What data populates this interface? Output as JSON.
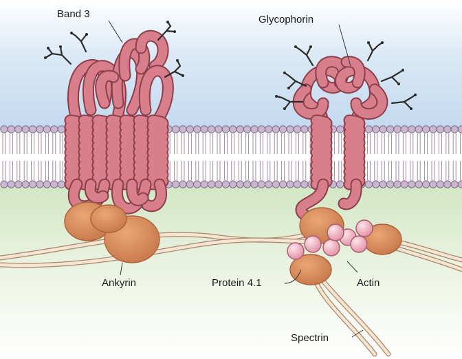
{
  "labels": {
    "band3": "Band 3",
    "glycophorin": "Glycophorin",
    "ankyrin": "Ankyrin",
    "protein41": "Protein 4.1",
    "actin": "Actin",
    "spectrin": "Spectrin"
  },
  "colors": {
    "extracellular": "#d7e6f4",
    "cytoplasm": "#dcebcf",
    "lipid_head": "#c9b6d0",
    "protein": "#d97f8c",
    "ankyrin_blob": "#d98b5a",
    "actin_bead": "#f2b4c2",
    "spectrin": "#f5e6d3"
  }
}
